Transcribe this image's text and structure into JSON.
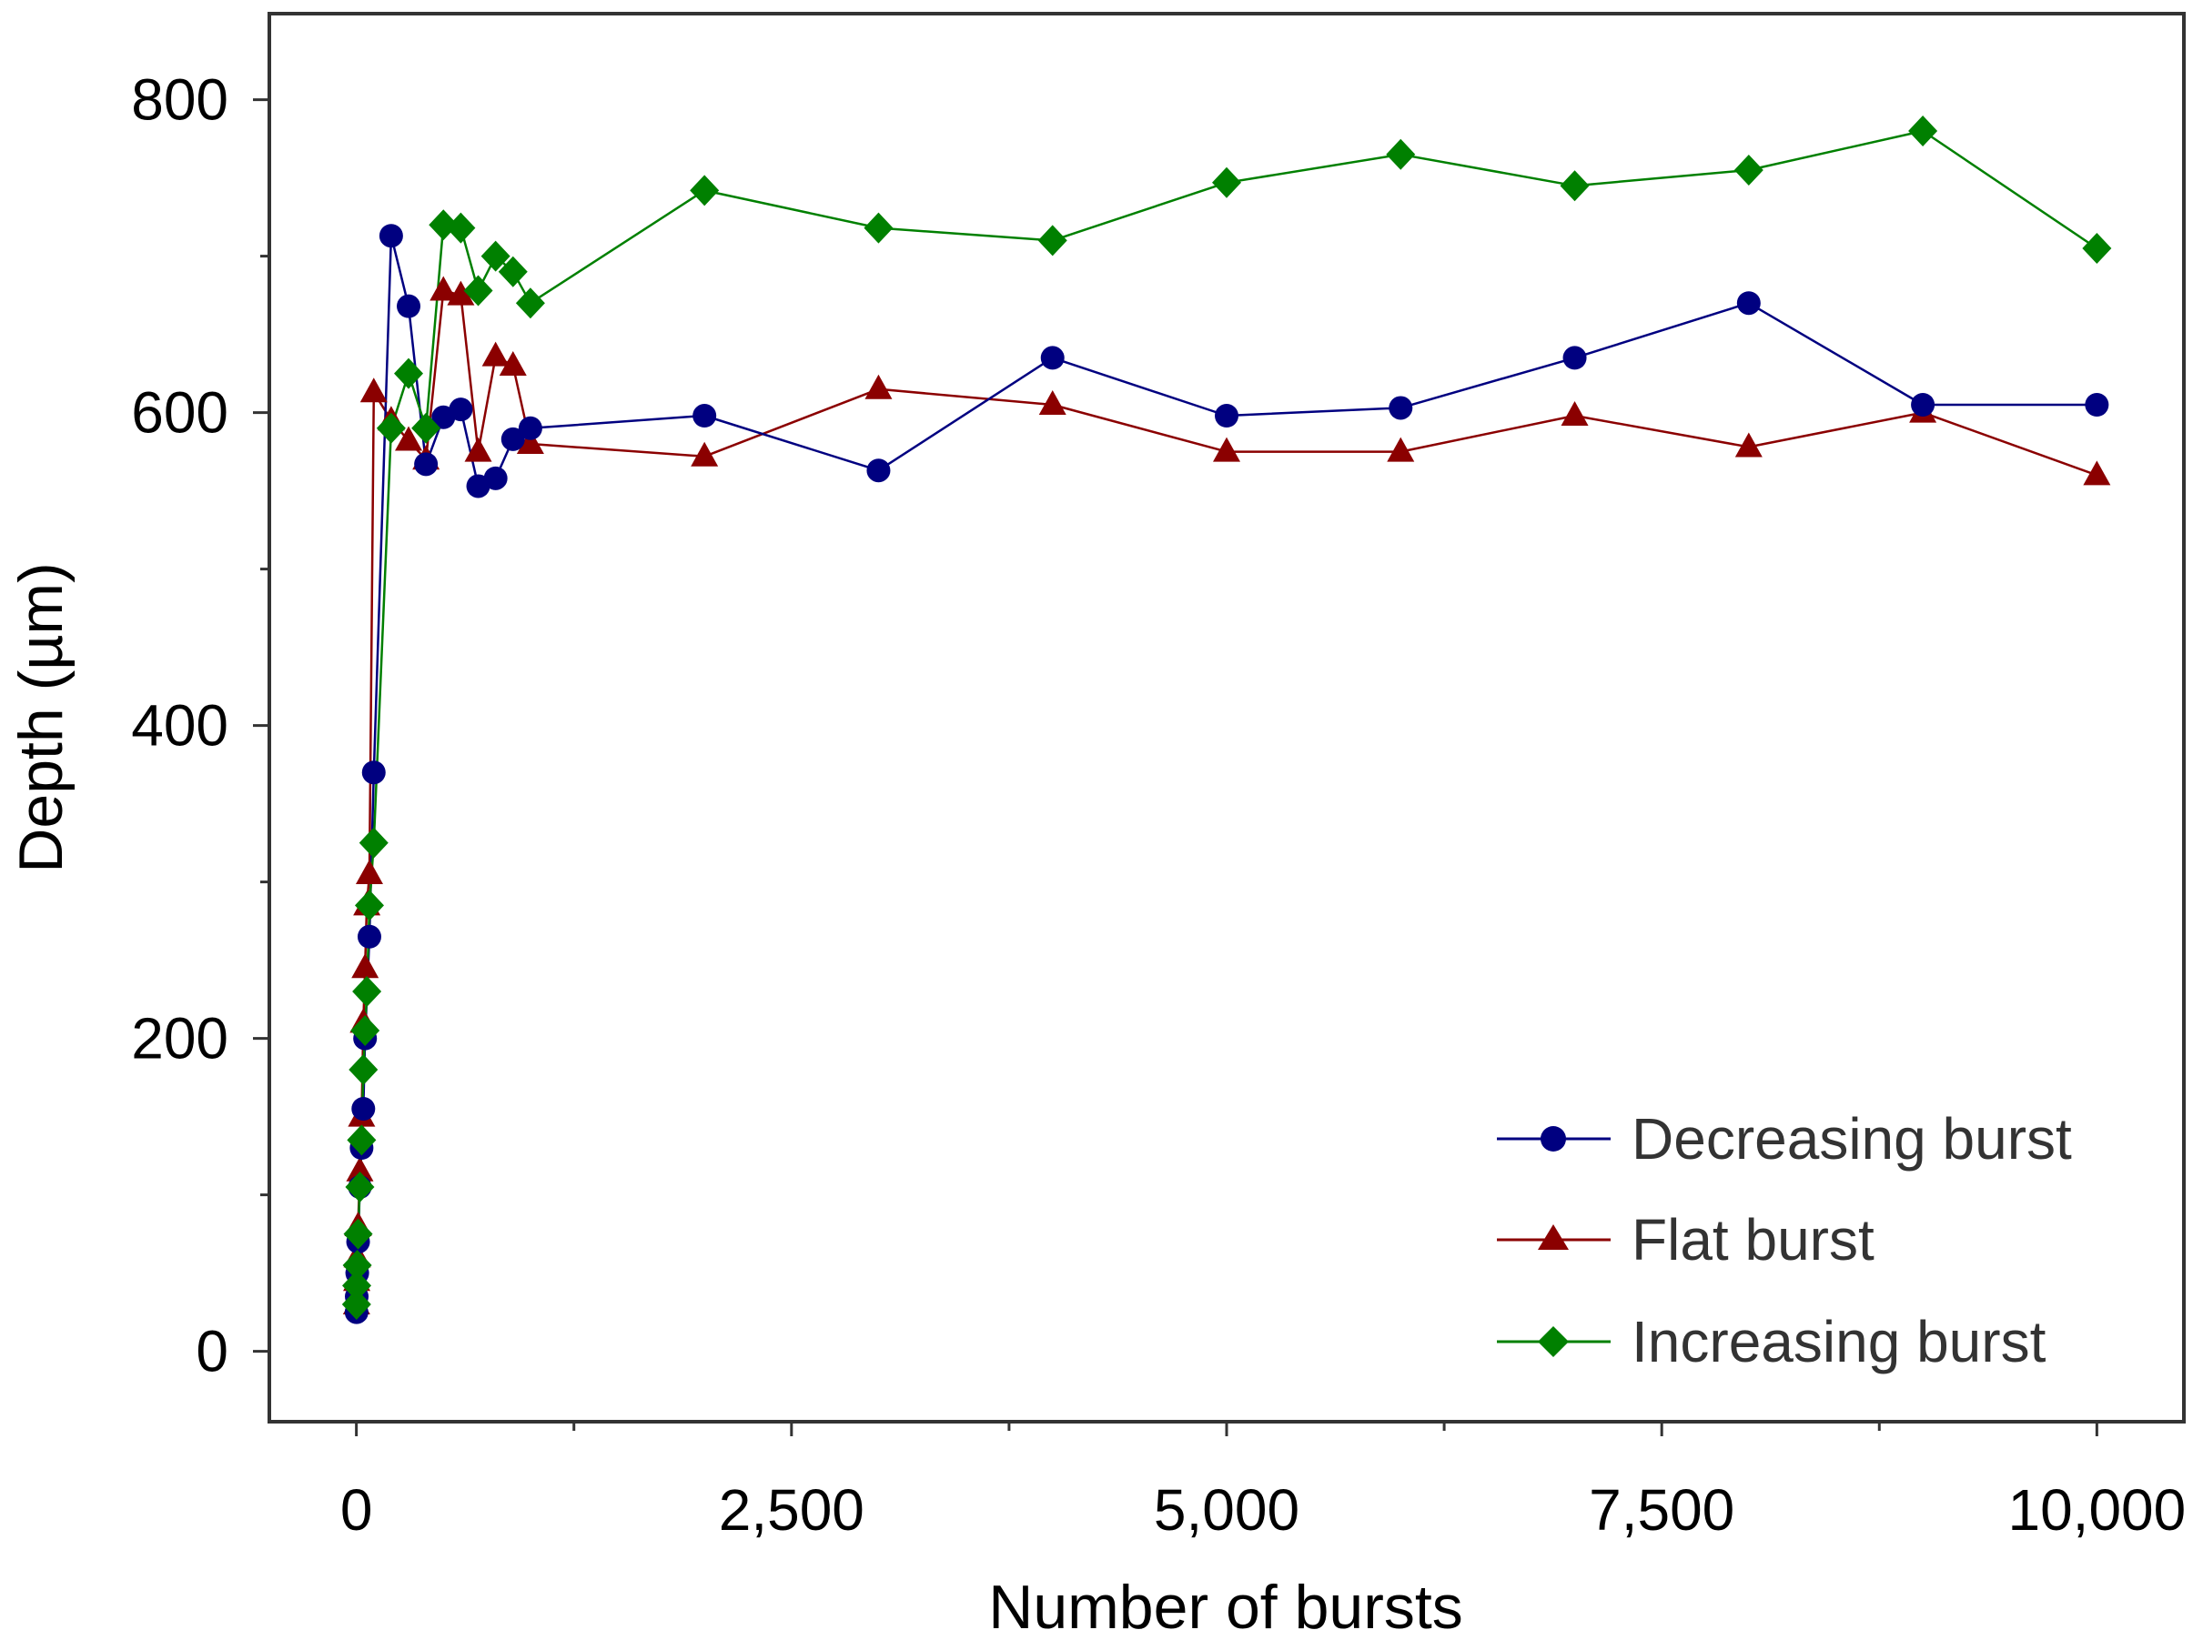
{
  "chart_data": {
    "type": "line",
    "title": "",
    "xlabel": "Number of bursts",
    "ylabel": "Depth (µm)",
    "xlim": [
      -500,
      10500
    ],
    "ylim": [
      -45,
      855
    ],
    "xticks": [
      0,
      2500,
      5000,
      7500,
      10000
    ],
    "xtick_labels": [
      "0",
      "2,500",
      "5,000",
      "7,500",
      "10,000"
    ],
    "xminor": [
      1250,
      3750,
      6250,
      8750
    ],
    "yticks": [
      0,
      200,
      400,
      600,
      800
    ],
    "ytick_labels": [
      "0",
      "200",
      "400",
      "600",
      "800"
    ],
    "yminor": [
      100,
      300,
      500,
      700
    ],
    "grid": false,
    "legend_position": "bottom-right",
    "series": [
      {
        "name": "Decreasing burst",
        "color": "#000080",
        "marker": "circle",
        "x": [
          1,
          2,
          5,
          10,
          20,
          30,
          40,
          50,
          75,
          100,
          200,
          300,
          400,
          500,
          600,
          700,
          800,
          900,
          1000,
          2000,
          3000,
          4000,
          5000,
          6000,
          7000,
          8000,
          9000,
          10000
        ],
        "y": [
          25,
          35,
          50,
          70,
          105,
          130,
          155,
          200,
          265,
          370,
          713,
          668,
          567,
          597,
          602,
          553,
          558,
          583,
          590,
          598,
          563,
          635,
          598,
          603,
          635,
          670,
          605,
          605
        ]
      },
      {
        "name": "Flat burst",
        "color": "#8B0000",
        "marker": "triangle",
        "x": [
          1,
          2,
          5,
          10,
          20,
          30,
          40,
          50,
          60,
          75,
          100,
          200,
          300,
          400,
          500,
          600,
          700,
          800,
          900,
          1000,
          2000,
          3000,
          4000,
          5000,
          6000,
          7000,
          8000,
          9000,
          10000
        ],
        "y": [
          30,
          45,
          60,
          80,
          115,
          150,
          210,
          245,
          285,
          305,
          613,
          595,
          582,
          570,
          678,
          675,
          575,
          636,
          630,
          580,
          572,
          615,
          605,
          575,
          575,
          598,
          578,
          600,
          560
        ]
      },
      {
        "name": "Increasing burst",
        "color": "#008000",
        "marker": "diamond",
        "x": [
          1,
          2,
          5,
          10,
          20,
          30,
          40,
          50,
          60,
          75,
          100,
          200,
          300,
          400,
          500,
          600,
          700,
          800,
          900,
          1000,
          2000,
          3000,
          4000,
          5000,
          6000,
          7000,
          8000,
          9000,
          10000
        ],
        "y": [
          30,
          42,
          55,
          75,
          105,
          135,
          180,
          205,
          230,
          285,
          325,
          590,
          625,
          590,
          720,
          718,
          678,
          700,
          690,
          670,
          742,
          718,
          710,
          747,
          765,
          745,
          755,
          780,
          705
        ]
      }
    ]
  }
}
